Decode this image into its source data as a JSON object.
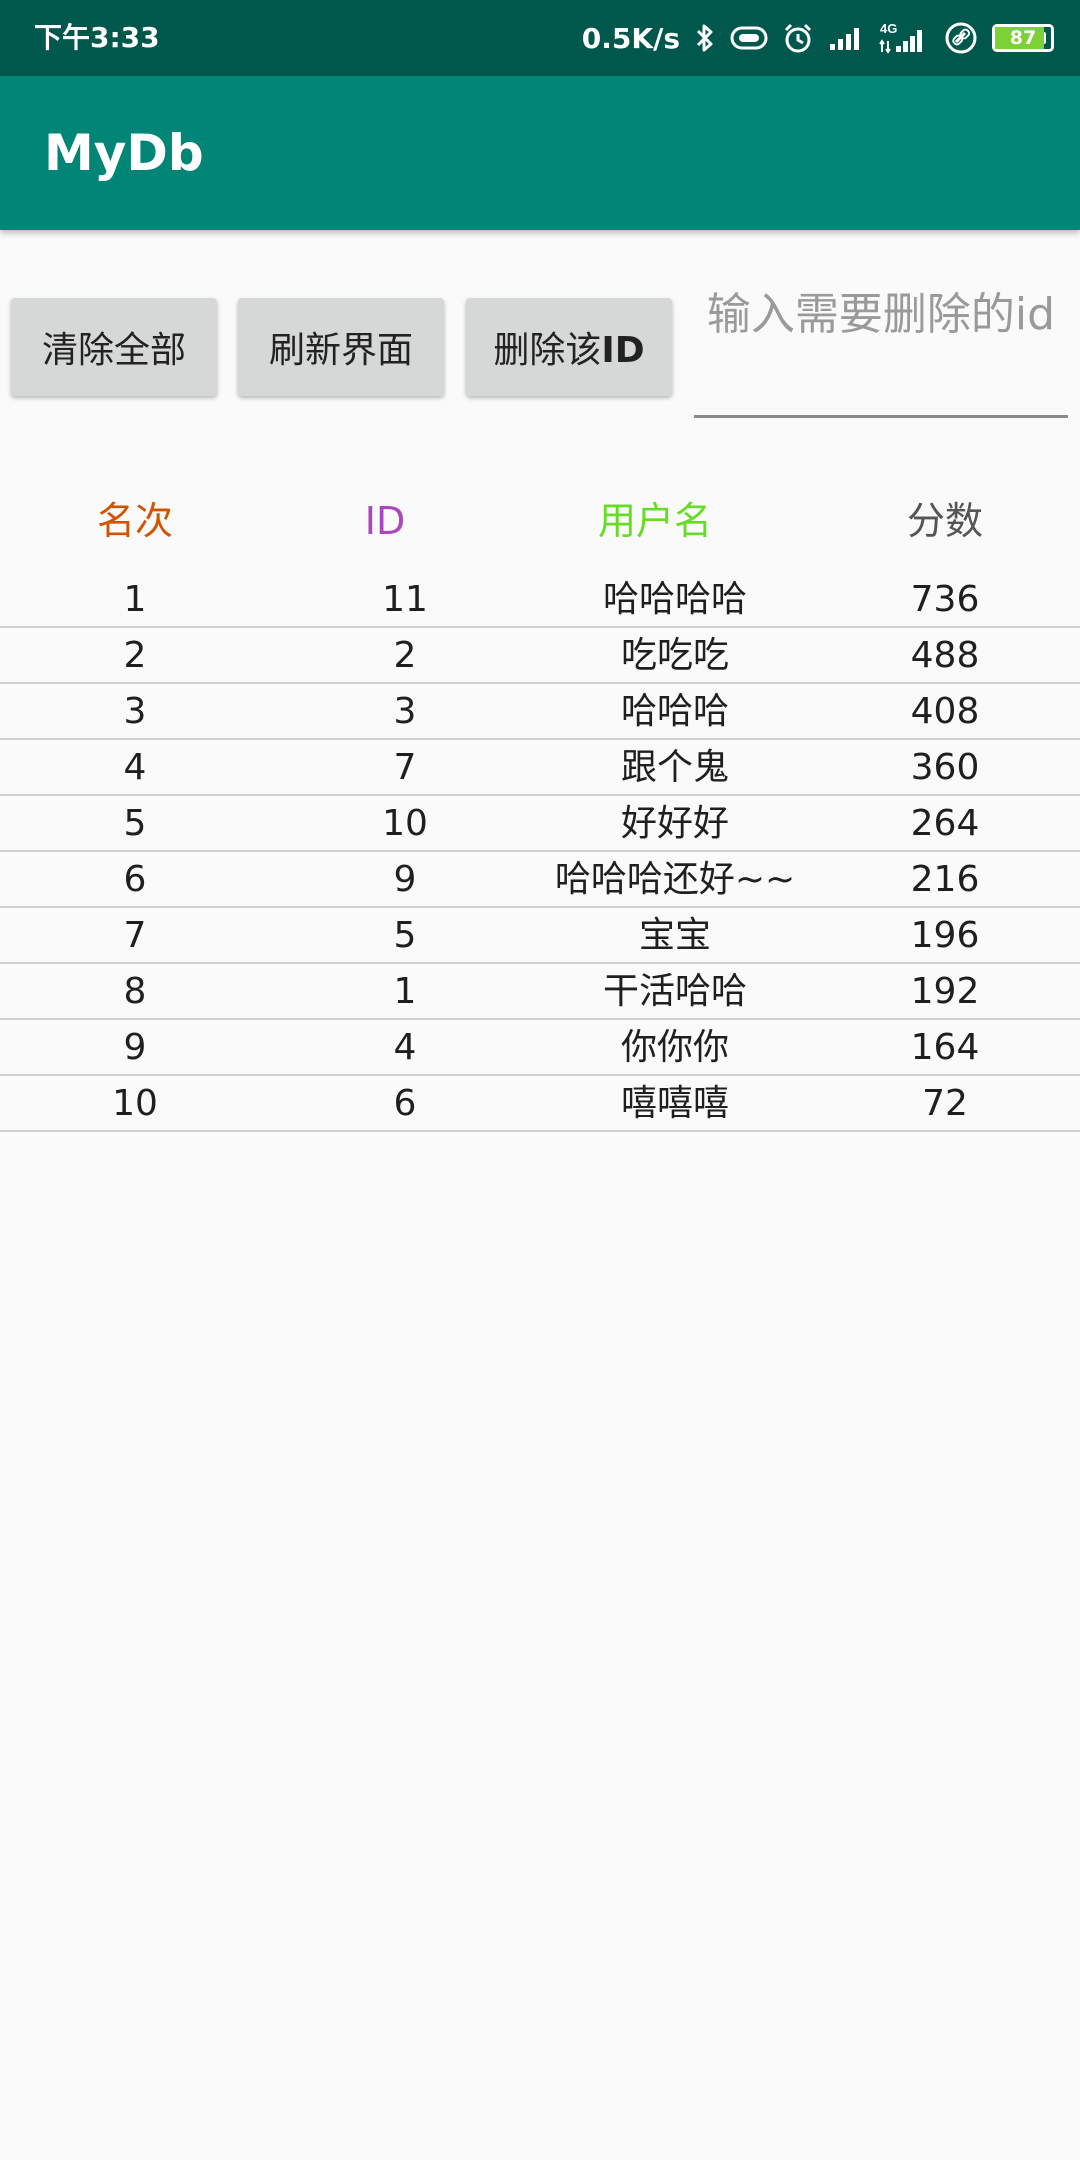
{
  "status_bar": {
    "time": "下午3:33",
    "net_speed": "0.5K/s",
    "battery_level": "87",
    "battery_percent": 87,
    "icons": [
      "bluetooth-icon",
      "nfc-icon",
      "alarm-icon",
      "signal-icon",
      "4g-signal-icon",
      "link-icon",
      "battery-icon"
    ],
    "network_type": "4G"
  },
  "app_bar": {
    "title": "MyDb"
  },
  "controls": {
    "clear_all_label": "清除全部",
    "refresh_label": "刷新界面",
    "delete_id_label_prefix": "删除该",
    "delete_id_label_suffix": "ID",
    "id_input_value": "",
    "id_input_placeholder": "输入需要删除的id"
  },
  "table": {
    "headers": [
      {
        "label": "名次",
        "color": "#d35400"
      },
      {
        "label": "ID",
        "color": "#ab47bc"
      },
      {
        "label": "用户名",
        "color": "#66dd22"
      },
      {
        "label": "分数",
        "color": "#555555"
      }
    ],
    "rows": [
      {
        "rank": "1",
        "id": "11",
        "username": "哈哈哈哈",
        "score": "736"
      },
      {
        "rank": "2",
        "id": "2",
        "username": "吃吃吃",
        "score": "488"
      },
      {
        "rank": "3",
        "id": "3",
        "username": "哈哈哈",
        "score": "408"
      },
      {
        "rank": "4",
        "id": "7",
        "username": "跟个鬼",
        "score": "360"
      },
      {
        "rank": "5",
        "id": "10",
        "username": "好好好",
        "score": "264"
      },
      {
        "rank": "6",
        "id": "9",
        "username": "哈哈哈还好~~",
        "score": "216"
      },
      {
        "rank": "7",
        "id": "5",
        "username": "宝宝",
        "score": "196"
      },
      {
        "rank": "8",
        "id": "1",
        "username": "干活哈哈",
        "score": "192"
      },
      {
        "rank": "9",
        "id": "4",
        "username": "你你你",
        "score": "164"
      },
      {
        "rank": "10",
        "id": "6",
        "username": "嘻嘻嘻",
        "score": "72"
      }
    ]
  }
}
